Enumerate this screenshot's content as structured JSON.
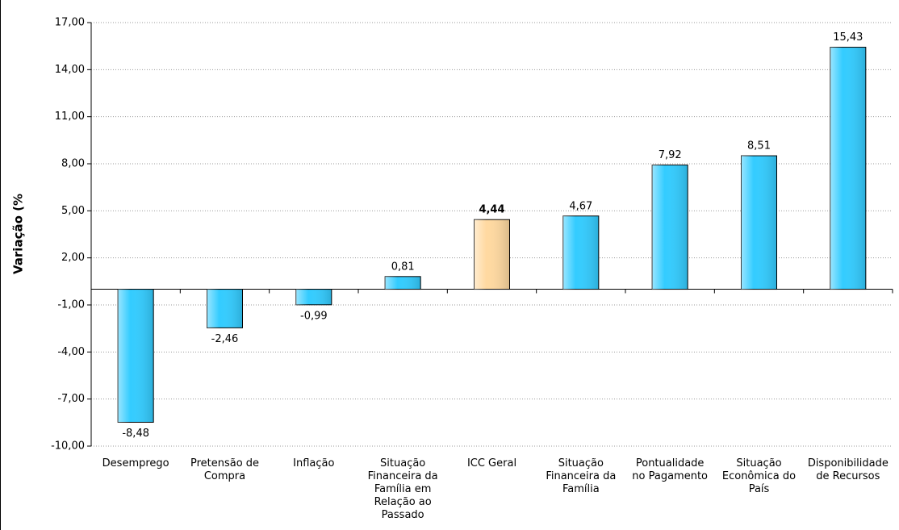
{
  "chart_data": {
    "type": "bar",
    "y_label": "Variação (%",
    "categories": [
      "Desemprego",
      "Pretensão de Compra",
      "Inflação",
      "Situação Financeira da Família em Relação ao Passado",
      "ICC Geral",
      "Situação Financeira da Família",
      "Pontualidade no Pagamento",
      "Situação Econômica do País",
      "Disponibilidade de Recursos"
    ],
    "values": [
      -8.48,
      -2.46,
      -0.99,
      0.81,
      4.44,
      4.67,
      7.92,
      8.51,
      15.43
    ],
    "value_labels": [
      "-8,48",
      "-2,46",
      "-0,99",
      "0,81",
      "4,44",
      "4,67",
      "7,92",
      "8,51",
      "15,43"
    ],
    "colors": [
      "#33ccff",
      "#33ccff",
      "#33ccff",
      "#33ccff",
      "#ffd9a0",
      "#33ccff",
      "#33ccff",
      "#33ccff",
      "#33ccff"
    ],
    "highlight": "ICC Geral",
    "ylim": [
      -10,
      17
    ],
    "yticks": [
      {
        "value": -10,
        "label": "-10,00"
      },
      {
        "value": -7,
        "label": "-7,00"
      },
      {
        "value": -4,
        "label": "-4,00"
      },
      {
        "value": -1,
        "label": "-1,00"
      },
      {
        "value": 2,
        "label": "2,00"
      },
      {
        "value": 5,
        "label": "5,00"
      },
      {
        "value": 8,
        "label": "8,00"
      },
      {
        "value": 11,
        "label": "11,00"
      },
      {
        "value": 14,
        "label": "14,00"
      },
      {
        "value": 17,
        "label": "17,00"
      }
    ],
    "grid": true
  }
}
